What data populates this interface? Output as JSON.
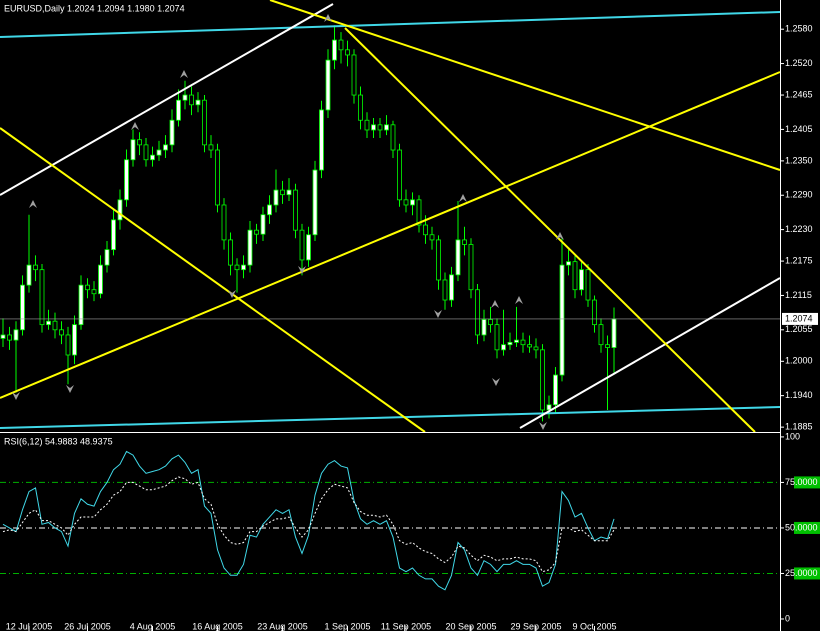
{
  "chart_data": [
    {
      "type": "candlestick",
      "title": "EURUSD,Daily  1.2024 1.2094 1.1980 1.2074",
      "categories": [
        null,
        null,
        null,
        null,
        "12 Jul 2005",
        null,
        null,
        null,
        null,
        null,
        null,
        null,
        null,
        "26 Jul 2005",
        null,
        null,
        null,
        null,
        null,
        null,
        null,
        null,
        null,
        "4 Aug 2005",
        null,
        null,
        null,
        null,
        null,
        null,
        null,
        null,
        null,
        "16 Aug 2005",
        null,
        null,
        null,
        null,
        null,
        null,
        null,
        null,
        null,
        "23 Aug 2005",
        null,
        null,
        null,
        null,
        null,
        null,
        null,
        null,
        null,
        "1 Sep 2005",
        null,
        null,
        null,
        null,
        null,
        null,
        null,
        null,
        "11 Sep 2005",
        null,
        null,
        null,
        null,
        null,
        null,
        null,
        null,
        null,
        "20 Sep 2005",
        null,
        null,
        null,
        null,
        null,
        null,
        null,
        null,
        null,
        "29 Sep 2005",
        null,
        null,
        null,
        null,
        null,
        null,
        null,
        null,
        "9 Oct 2005",
        null,
        null,
        null
      ],
      "open": [
        1.204,
        1.2046,
        1.2037,
        1.2055,
        1.2133,
        1.2168,
        1.216,
        1.2064,
        1.207,
        1.2055,
        1.2046,
        1.2011,
        1.2064,
        1.2133,
        1.2125,
        1.2118,
        1.2168,
        1.2195,
        1.2247,
        1.2282,
        1.2352,
        1.2387,
        1.2378,
        1.2352,
        1.236,
        1.2369,
        1.2378,
        1.2421,
        1.2456,
        1.2465,
        1.2448,
        1.2456,
        1.2378,
        1.2369,
        1.2273,
        1.2212,
        1.2168,
        1.216,
        1.2168,
        1.2229,
        1.2222,
        1.2256,
        1.2273,
        1.2299,
        1.2291,
        1.2299,
        1.2229,
        1.2177,
        1.2221,
        1.2334,
        1.2439,
        1.2526,
        1.2561,
        1.2544,
        1.2535,
        1.2465,
        1.2421,
        1.2404,
        1.2413,
        1.2404,
        1.2413,
        1.2369,
        1.2282,
        1.2273,
        1.2282,
        1.2238,
        1.2221,
        1.2212,
        1.2142,
        1.2107,
        1.2151,
        1.2212,
        1.2204,
        1.2125,
        1.2046,
        1.2073,
        1.2064,
        1.202,
        1.2029,
        1.2033,
        1.2037,
        1.2029,
        1.2025,
        1.202,
        1.1915,
        1.1924,
        1.1976,
        1.2168,
        1.2174,
        1.2125,
        1.216,
        1.2107,
        1.2064,
        1.2029,
        1.2024
      ],
      "high": [
        1.2075,
        1.206,
        1.207,
        1.215,
        1.2256,
        1.2185,
        1.217,
        1.209,
        1.2085,
        1.207,
        1.206,
        1.208,
        1.215,
        1.2145,
        1.214,
        1.2185,
        1.221,
        1.2265,
        1.23,
        1.237,
        1.2405,
        1.24,
        1.239,
        1.2375,
        1.2385,
        1.2395,
        1.244,
        1.2475,
        1.249,
        1.248,
        1.247,
        1.2465,
        1.2395,
        1.238,
        1.2285,
        1.2225,
        1.218,
        1.2185,
        1.2245,
        1.224,
        1.227,
        1.229,
        1.2335,
        1.2315,
        1.232,
        1.231,
        1.224,
        1.2235,
        1.235,
        1.2455,
        1.2545,
        1.2587,
        1.2575,
        1.256,
        1.2545,
        1.248,
        1.2435,
        1.2425,
        1.2425,
        1.243,
        1.242,
        1.238,
        1.23,
        1.2295,
        1.229,
        1.2255,
        1.2235,
        1.222,
        1.2155,
        1.2165,
        1.228,
        1.2235,
        1.2215,
        1.2135,
        1.209,
        1.2095,
        1.2075,
        1.209,
        1.205,
        1.2095,
        1.205,
        1.2045,
        1.204,
        1.203,
        1.194,
        1.199,
        1.2215,
        1.2195,
        1.2185,
        1.2175,
        1.217,
        1.2115,
        1.2075,
        1.2045,
        1.2094
      ],
      "low": [
        1.2025,
        1.202,
        1.1945,
        1.2045,
        1.212,
        1.214,
        1.205,
        1.2055,
        1.204,
        1.203,
        1.196,
        1.1995,
        1.2055,
        1.211,
        1.2105,
        1.211,
        1.2155,
        1.2185,
        1.223,
        1.227,
        1.234,
        1.236,
        1.234,
        1.234,
        1.235,
        1.2355,
        1.2365,
        1.241,
        1.244,
        1.243,
        1.2435,
        1.2365,
        1.2355,
        1.226,
        1.2195,
        1.215,
        1.212,
        1.2145,
        1.2155,
        1.2205,
        1.221,
        1.224,
        1.226,
        1.2275,
        1.228,
        1.2215,
        1.215,
        1.2165,
        1.221,
        1.232,
        1.2425,
        1.251,
        1.252,
        1.2515,
        1.245,
        1.2405,
        1.239,
        1.239,
        1.239,
        1.2395,
        1.2355,
        1.227,
        1.226,
        1.2255,
        1.2225,
        1.2205,
        1.2195,
        1.2125,
        1.209,
        1.2095,
        1.214,
        1.2185,
        1.211,
        1.203,
        1.2035,
        1.205,
        1.2005,
        1.201,
        1.202,
        1.2025,
        1.2015,
        1.2015,
        1.2005,
        1.1895,
        1.19,
        1.191,
        1.1965,
        1.215,
        1.211,
        1.2115,
        1.2095,
        1.205,
        1.2015,
        1.1915,
        1.198
      ],
      "close": [
        1.2046,
        1.2037,
        1.2055,
        1.2133,
        1.2168,
        1.216,
        1.2064,
        1.207,
        1.2055,
        1.2046,
        1.2011,
        1.2064,
        1.2133,
        1.2125,
        1.2118,
        1.2168,
        1.2195,
        1.2247,
        1.2282,
        1.2352,
        1.2387,
        1.2378,
        1.2352,
        1.236,
        1.2369,
        1.2378,
        1.2421,
        1.2456,
        1.2465,
        1.2448,
        1.2456,
        1.2378,
        1.2369,
        1.2273,
        1.2212,
        1.2168,
        1.216,
        1.2168,
        1.2229,
        1.2222,
        1.2256,
        1.2273,
        1.2299,
        1.2291,
        1.2299,
        1.2229,
        1.2177,
        1.2221,
        1.2334,
        1.2439,
        1.2526,
        1.2561,
        1.2544,
        1.2535,
        1.2465,
        1.2421,
        1.2404,
        1.2413,
        1.2404,
        1.2413,
        1.2369,
        1.2282,
        1.2273,
        1.2282,
        1.2238,
        1.2221,
        1.2212,
        1.2142,
        1.2107,
        1.2151,
        1.2212,
        1.2204,
        1.2125,
        1.2046,
        1.2073,
        1.2064,
        1.202,
        1.2029,
        1.2033,
        1.2037,
        1.2029,
        1.2025,
        1.202,
        1.1915,
        1.1924,
        1.1976,
        1.2168,
        1.2174,
        1.2125,
        1.216,
        1.2107,
        1.2064,
        1.2029,
        1.2024,
        1.2074
      ],
      "ylim": [
        1.188,
        1.2631
      ],
      "yticks": [
        {
          "value": 1.258,
          "label": "1.2580"
        },
        {
          "value": 1.252,
          "label": "1.2520"
        },
        1.2465,
        1.2405,
        {
          "value": 1.235,
          "label": "1.2350"
        },
        {
          "value": 1.229,
          "label": "1.2290"
        },
        {
          "value": 1.223,
          "label": "1.2230"
        },
        1.2175,
        1.2115,
        1.2055,
        {
          "value": 1.2,
          "label": "1.2000"
        },
        {
          "value": 1.194,
          "label": "1.1940"
        },
        1.1885
      ],
      "colors": {
        "up": "#ffffff",
        "down": "#000000",
        "outline": "#00ff00",
        "bid_line": "#a0a0a0"
      }
    },
    {
      "type": "line",
      "title": "RSI(6,12)  54.9883  48.9375",
      "series": [
        {
          "color": "#40d8e8",
          "values": [
            52,
            50,
            48,
            60,
            70,
            72,
            52,
            53,
            50,
            48,
            40,
            58,
            66,
            63,
            62,
            70,
            75,
            82,
            85,
            92,
            90,
            84,
            80,
            81,
            82,
            84,
            88,
            90,
            86,
            80,
            82,
            62,
            58,
            38,
            28,
            24,
            24,
            30,
            46,
            45,
            52,
            56,
            60,
            58,
            60,
            45,
            36,
            46,
            68,
            80,
            85,
            87,
            84,
            83,
            65,
            55,
            52,
            54,
            52,
            54,
            45,
            28,
            26,
            28,
            24,
            22,
            22,
            18,
            16,
            24,
            42,
            38,
            28,
            24,
            32,
            30,
            26,
            30,
            30,
            32,
            30,
            30,
            28,
            18,
            20,
            30,
            70,
            65,
            56,
            58,
            50,
            43,
            45,
            44,
            54.9883
          ]
        },
        {
          "color": "#ffffff",
          "dash": true,
          "values": [
            48,
            49,
            48,
            53,
            58,
            60,
            54,
            54,
            52,
            50,
            46,
            52,
            56,
            56,
            56,
            60,
            63,
            68,
            70,
            75,
            75,
            73,
            71,
            71,
            72,
            73,
            76,
            78,
            77,
            74,
            75,
            66,
            63,
            52,
            46,
            42,
            41,
            42,
            48,
            48,
            51,
            53,
            55,
            55,
            56,
            50,
            45,
            49,
            58,
            66,
            71,
            74,
            73,
            72,
            64,
            59,
            57,
            57,
            56,
            57,
            52,
            43,
            41,
            42,
            39,
            37,
            36,
            33,
            31,
            34,
            40,
            39,
            35,
            32,
            35,
            34,
            32,
            33,
            33,
            34,
            33,
            33,
            32,
            26,
            27,
            31,
            50,
            50,
            48,
            49,
            46,
            43,
            43,
            43,
            48.9375
          ]
        }
      ],
      "ylim": [
        -6.6,
        101.6
      ],
      "yticks": [
        100,
        {
          "value": 75,
          "label": "75.0000"
        },
        {
          "value": 50,
          "label": "50.0000"
        },
        {
          "value": 25,
          "label": "25.0000"
        },
        0
      ],
      "levels": [
        {
          "value": 75,
          "color": "#00b000"
        },
        {
          "value": 50,
          "color": "#ffffff"
        },
        {
          "value": 25,
          "color": "#00b000"
        }
      ]
    }
  ]
}
